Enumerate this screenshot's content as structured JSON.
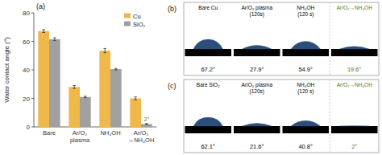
{
  "chart_data": [
    {
      "type": "bar",
      "title": "(a)",
      "categories": [
        "Bare",
        "Ar/O₂\nplasma",
        "NH₄OH",
        "Ar/O₂\n→NH₄OH"
      ],
      "series": [
        {
          "name": "Cu",
          "color": "#F0B84A",
          "values": [
            67.2,
            28.0,
            53.5,
            20.0
          ],
          "errors": [
            1.0,
            1.0,
            1.5,
            1.0
          ]
        },
        {
          "name": "SiO₂",
          "color": "#A0A0A0",
          "values": [
            61.5,
            21.0,
            40.5,
            2.0
          ],
          "errors": [
            1.0,
            0.5,
            0.5,
            0.3
          ]
        }
      ],
      "ylabel": "Water contact angle (°)",
      "ylim": [
        0,
        80
      ],
      "yticks": [
        0,
        20,
        40,
        60,
        80
      ],
      "legend": "upper right",
      "annotation": "2°"
    },
    {
      "type": "droplet",
      "title": "(b)",
      "categories": [
        "Bare Cu",
        "Ar/O₂ plasma\n(120s)",
        "NH₄OH\n(120 s)",
        "Ar/O₂→NH₄OH"
      ],
      "values": [
        67.2,
        27.9,
        54.9,
        19.6
      ],
      "value_labels": [
        "67.2°",
        "27.9°",
        "54.9°",
        "19.6°"
      ],
      "colors": [
        "#000000",
        "#000000",
        "#000000",
        "#4A7A2A"
      ],
      "data_labels": true
    },
    {
      "type": "droplet",
      "title": "(c)",
      "categories": [
        "Bare SiO₂",
        "Ar/O₂ plasma\n(120s)",
        "NH₄OH\n(120 s)",
        "Ar/O₂→NH₄OH"
      ],
      "values": [
        62.1,
        21.6,
        40.8,
        2.0
      ],
      "value_labels": [
        "62.1°",
        "21.6°",
        "40.8°",
        "2°"
      ],
      "colors": [
        "#000000",
        "#000000",
        "#000000",
        "#4A7A2A"
      ],
      "data_labels": true
    }
  ]
}
